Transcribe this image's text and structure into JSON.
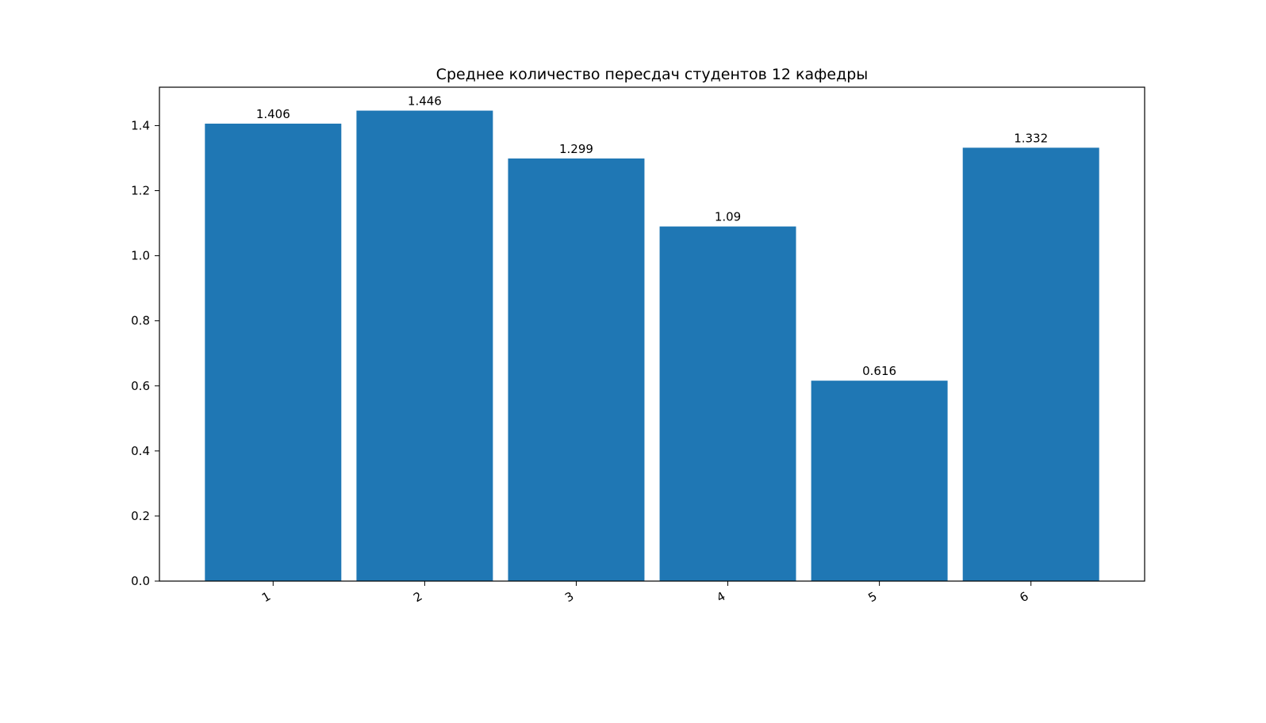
{
  "chart_data": {
    "type": "bar",
    "title": "Среднее количество пересдач студентов 12 кафедры",
    "xlabel": "",
    "ylabel": "",
    "categories": [
      "1",
      "2",
      "3",
      "4",
      "5",
      "6"
    ],
    "values": [
      1.406,
      1.446,
      1.299,
      1.09,
      0.616,
      1.332
    ],
    "value_labels": [
      "1.406",
      "1.446",
      "1.299",
      "1.09",
      "0.616",
      "1.332"
    ],
    "yticks": [
      "0.0",
      "0.2",
      "0.4",
      "0.6",
      "0.8",
      "1.0",
      "1.2",
      "1.4"
    ],
    "ylim": [
      0,
      1.518
    ],
    "bar_color": "#1f77b4",
    "grid": false,
    "legend": "none"
  }
}
